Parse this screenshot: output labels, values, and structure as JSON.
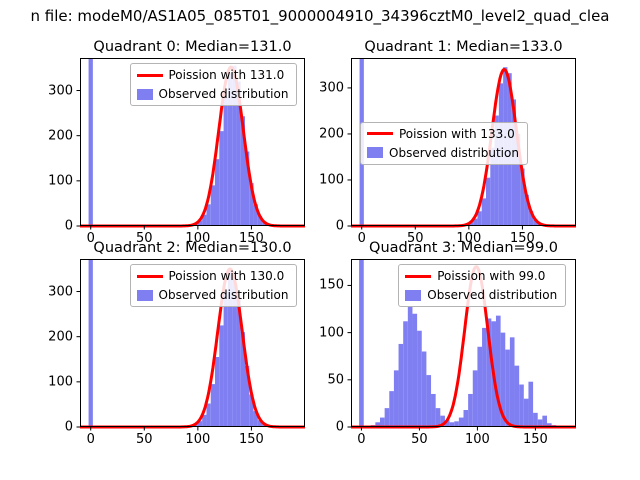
{
  "figure": {
    "title": "n file: modeM0/AS1A05_085T01_9000004910_34396cztM0_level2_quad_clea"
  },
  "colors": {
    "bar": "#7f7ff2",
    "curve": "#ff0000",
    "axis": "#000000"
  },
  "chart_data": [
    {
      "type": "histogram+line",
      "title": "Quadrant 0: Median=131.0",
      "median": 131.0,
      "legend": [
        "Poission with 131.0",
        "Observed distribution"
      ],
      "xlim": [
        -10,
        200
      ],
      "ylim": [
        0,
        372
      ],
      "x_ticks": [
        0,
        50,
        100,
        150
      ],
      "y_ticks": [
        0,
        100,
        200,
        300
      ],
      "hist": {
        "start": 76,
        "bin_width": 4,
        "counts": [
          1,
          0,
          0,
          2,
          3,
          6,
          12,
          25,
          48,
          90,
          148,
          210,
          285,
          338,
          355,
          320,
          243,
          165,
          95,
          48,
          22,
          10,
          4,
          2
        ]
      },
      "zero_spike": {
        "x": 0,
        "width": 4
      },
      "curve": {
        "mu": 131.0,
        "sigma": 11.4,
        "peak": 352
      },
      "legend_pos": {
        "x": 0.22,
        "y": 0.03
      }
    },
    {
      "type": "histogram+line",
      "title": "Quadrant 1: Median=133.0",
      "median": 133.0,
      "legend": [
        "Poission with 133.0",
        "Observed distribution"
      ],
      "xlim": [
        -10,
        200
      ],
      "ylim": [
        0,
        365
      ],
      "x_ticks": [
        0,
        50,
        100,
        150
      ],
      "y_ticks": [
        0,
        100,
        200,
        300
      ],
      "hist": {
        "start": 80,
        "bin_width": 4,
        "counts": [
          1,
          0,
          1,
          2,
          4,
          8,
          16,
          32,
          60,
          105,
          170,
          240,
          310,
          345,
          332,
          275,
          200,
          125,
          68,
          33,
          14,
          6,
          2
        ]
      },
      "zero_spike": {
        "x": 0,
        "width": 4
      },
      "curve": {
        "mu": 133.0,
        "sigma": 11.5,
        "peak": 340
      },
      "legend_pos": {
        "x": 0.04,
        "y": 0.38
      }
    },
    {
      "type": "histogram+line",
      "title": "Quadrant 2: Median=130.0",
      "median": 130.0,
      "legend": [
        "Poission with 130.0",
        "Observed distribution"
      ],
      "xlim": [
        -10,
        200
      ],
      "ylim": [
        0,
        372
      ],
      "x_ticks": [
        0,
        50,
        100,
        150
      ],
      "y_ticks": [
        0,
        100,
        200,
        300
      ],
      "hist": {
        "start": 76,
        "bin_width": 4,
        "counts": [
          1,
          0,
          0,
          1,
          3,
          6,
          13,
          27,
          52,
          95,
          155,
          225,
          300,
          348,
          342,
          288,
          210,
          135,
          72,
          35,
          15,
          6,
          2
        ]
      },
      "zero_spike": {
        "x": 0,
        "width": 4
      },
      "curve": {
        "mu": 130.0,
        "sigma": 11.4,
        "peak": 350
      },
      "legend_pos": {
        "x": 0.22,
        "y": 0.03
      }
    },
    {
      "type": "histogram+line",
      "title": "Quadrant 3: Median=99.0",
      "median": 99.0,
      "legend": [
        "Poission with 99.0",
        "Observed distribution"
      ],
      "xlim": [
        -9,
        185
      ],
      "ylim": [
        0,
        178
      ],
      "x_ticks": [
        0,
        50,
        100,
        150
      ],
      "y_ticks": [
        0,
        50,
        100,
        150
      ],
      "hist": {
        "start": 8,
        "bin_width": 4,
        "counts": [
          2,
          5,
          10,
          20,
          38,
          60,
          88,
          112,
          128,
          120,
          102,
          80,
          55,
          35,
          20,
          12,
          7,
          5,
          6,
          10,
          18,
          35,
          60,
          85,
          105,
          115,
          112,
          118,
          100,
          82,
          95,
          65,
          45,
          30,
          48,
          15,
          8,
          12,
          4,
          2
        ]
      },
      "zero_spike": {
        "x": 0,
        "width": 4
      },
      "curve": {
        "mu": 99.0,
        "sigma": 10.0,
        "peak": 170
      },
      "legend_pos": {
        "x": 0.21,
        "y": 0.03
      }
    }
  ]
}
